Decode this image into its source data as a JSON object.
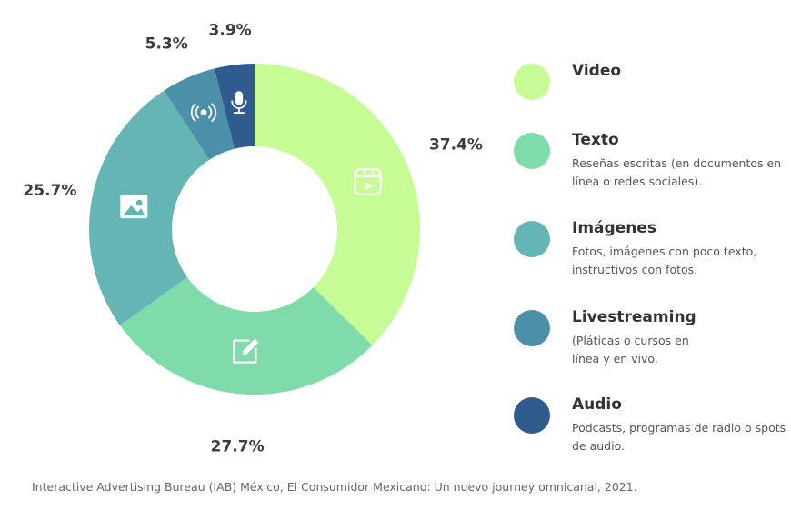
{
  "chart_data": {
    "type": "pie",
    "title": "",
    "unit": "%",
    "series": [
      {
        "name": "Video",
        "value": 37.4,
        "label": "37.4%",
        "color": "#c6fb95",
        "icon": "video-icon",
        "description": ""
      },
      {
        "name": "Texto",
        "value": 27.7,
        "label": "27.7%",
        "color": "#7fdbaa",
        "icon": "edit-icon",
        "description": "Reseñas escritas (en documentos en línea o redes sociales)."
      },
      {
        "name": "Imágenes",
        "value": 25.7,
        "label": "25.7%",
        "color": "#66b5b5",
        "icon": "image-icon",
        "description": "Fotos, imágenes con poco texto, instructivos con fotos."
      },
      {
        "name": "Livestreaming",
        "value": 5.3,
        "label": "5.3%",
        "color": "#4b8fa9",
        "icon": "broadcast-icon",
        "description": "(Pláticas o cursos en línea y en vivo."
      },
      {
        "name": "Audio",
        "value": 3.9,
        "label": "3.9%",
        "color": "#2f5b8e",
        "icon": "microphone-icon",
        "description": "Podcasts, programas de radio o spots de audio."
      }
    ],
    "legend_position": "right"
  },
  "source": "Interactive Advertising Bureau (IAB) México, El Consumidor Mexicano: Un nuevo journey omnicanal, 2021."
}
